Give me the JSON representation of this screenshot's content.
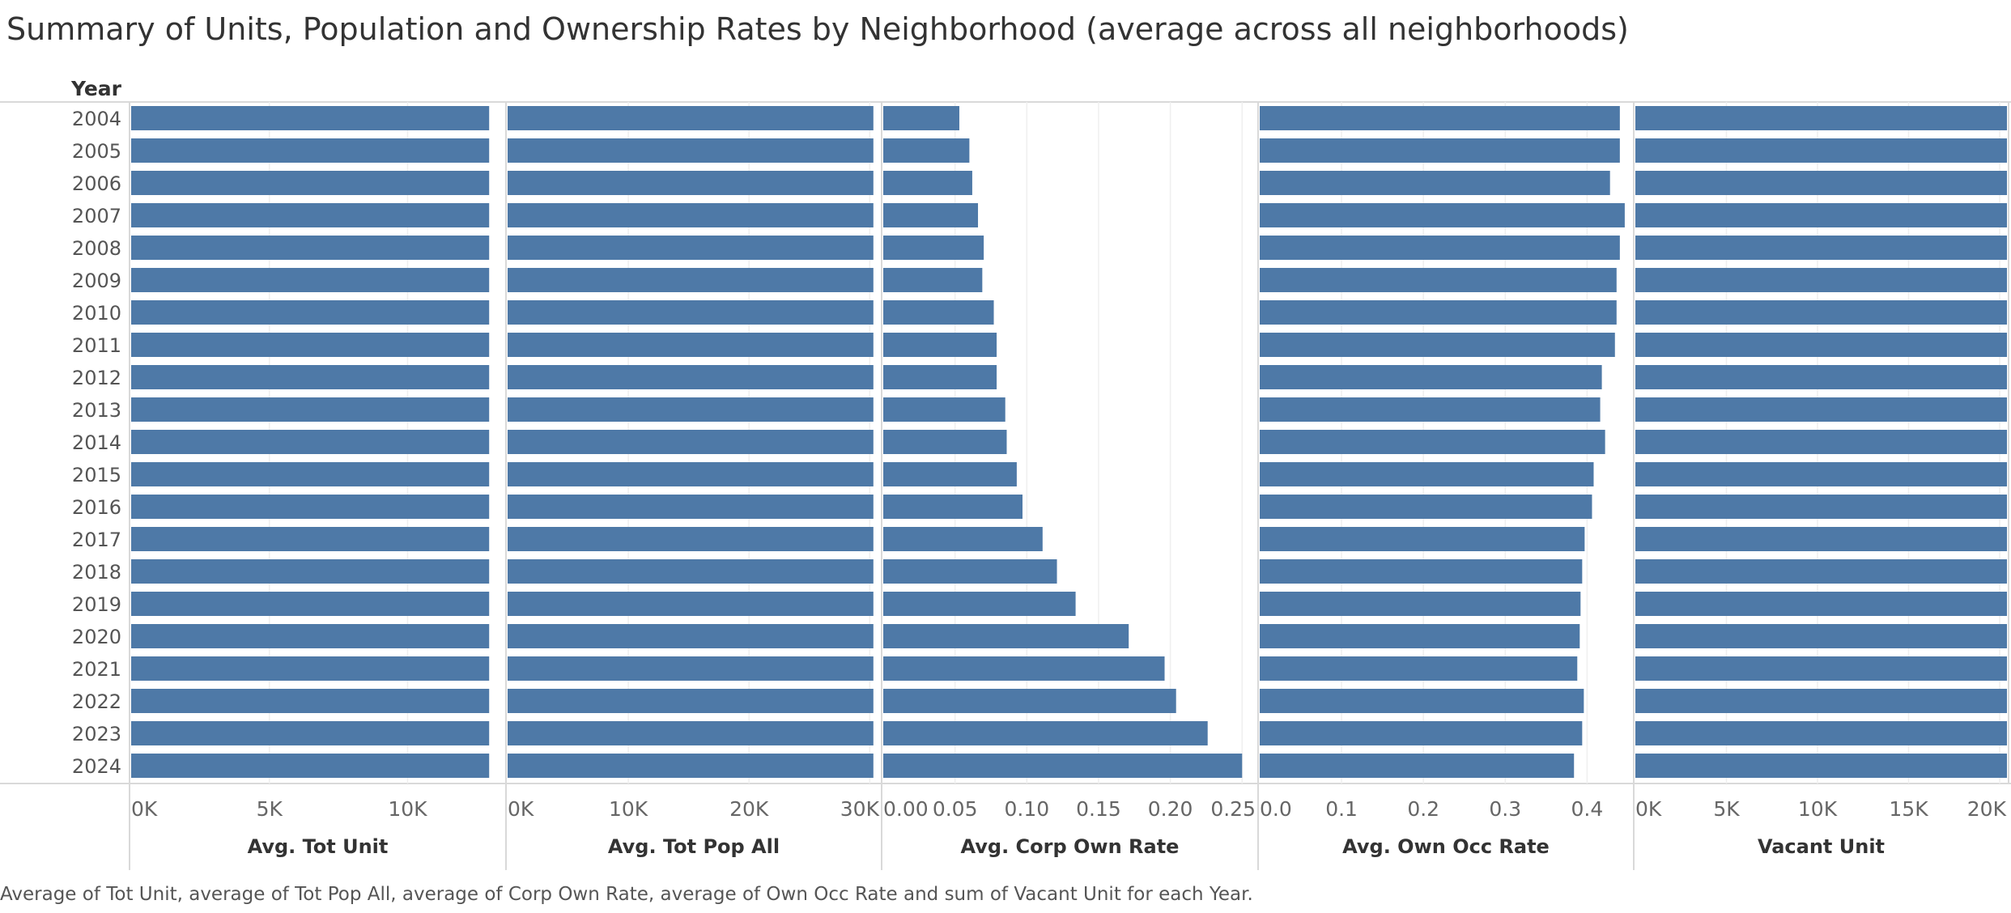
{
  "title": "Summary of Units, Population and Ownership Rates by Neighborhood (average across all neighborhoods)",
  "caption": "Average of Tot Unit, average of Tot Pop All, average of Corp Own Rate, average of Own Occ Rate and sum of Vacant Unit for each Year.",
  "bar_color": "#4e79a7",
  "chart_data": {
    "type": "bar",
    "orientation": "horizontal",
    "row_header": "Year",
    "categories": [
      "2004",
      "2005",
      "2006",
      "2007",
      "2008",
      "2009",
      "2010",
      "2011",
      "2012",
      "2013",
      "2014",
      "2015",
      "2016",
      "2017",
      "2018",
      "2019",
      "2020",
      "2021",
      "2022",
      "2023",
      "2024"
    ],
    "panels": [
      {
        "name": "Avg. Tot Unit",
        "xlim": [
          0,
          13500
        ],
        "ticks": [
          {
            "value": 0,
            "label": "0K"
          },
          {
            "value": 5000,
            "label": "5K"
          },
          {
            "value": 10000,
            "label": "10K"
          }
        ],
        "values": [
          12950,
          12950,
          12950,
          12950,
          12950,
          12950,
          12950,
          12950,
          12950,
          12950,
          12950,
          12950,
          12950,
          12950,
          12950,
          12950,
          12950,
          12950,
          12950,
          12950,
          12950
        ]
      },
      {
        "name": "Avg. Tot Pop All",
        "xlim": [
          0,
          30850
        ],
        "ticks": [
          {
            "value": 0,
            "label": "0K"
          },
          {
            "value": 10000,
            "label": "10K"
          },
          {
            "value": 20000,
            "label": "20K"
          },
          {
            "value": 30000,
            "label": "30K"
          }
        ],
        "values": [
          30300,
          30300,
          30300,
          30300,
          30300,
          30300,
          30300,
          30300,
          30300,
          30300,
          30300,
          30300,
          30300,
          30300,
          30300,
          30300,
          30300,
          30300,
          30300,
          30300,
          30300
        ]
      },
      {
        "name": "Avg. Corp Own Rate",
        "xlim": [
          0,
          0.26
        ],
        "ticks": [
          {
            "value": 0,
            "label": "0.00"
          },
          {
            "value": 0.05,
            "label": "0.05"
          },
          {
            "value": 0.1,
            "label": "0.10"
          },
          {
            "value": 0.15,
            "label": "0.15"
          },
          {
            "value": 0.2,
            "label": "0.20"
          },
          {
            "value": 0.25,
            "label": "0.25"
          }
        ],
        "values": [
          0.053,
          0.06,
          0.062,
          0.066,
          0.07,
          0.069,
          0.077,
          0.079,
          0.079,
          0.085,
          0.086,
          0.093,
          0.097,
          0.111,
          0.121,
          0.134,
          0.171,
          0.196,
          0.204,
          0.226,
          0.25
        ]
      },
      {
        "name": "Avg. Own Occ Rate",
        "xlim": [
          0,
          0.455
        ],
        "ticks": [
          {
            "value": 0,
            "label": "0.0"
          },
          {
            "value": 0.1,
            "label": "0.1"
          },
          {
            "value": 0.2,
            "label": "0.2"
          },
          {
            "value": 0.3,
            "label": "0.3"
          },
          {
            "value": 0.4,
            "label": "0.4"
          }
        ],
        "values": [
          0.44,
          0.44,
          0.428,
          0.446,
          0.44,
          0.436,
          0.436,
          0.434,
          0.418,
          0.416,
          0.422,
          0.408,
          0.406,
          0.397,
          0.394,
          0.392,
          0.391,
          0.388,
          0.396,
          0.394,
          0.384
        ]
      },
      {
        "name": "Vacant Unit",
        "xlim": [
          0,
          20400
        ],
        "ticks": [
          {
            "value": 0,
            "label": "0K"
          },
          {
            "value": 5000,
            "label": "5K"
          },
          {
            "value": 10000,
            "label": "10K"
          },
          {
            "value": 15000,
            "label": "15K"
          },
          {
            "value": 20000,
            "label": "20K"
          }
        ],
        "values": [
          21900,
          21900,
          21900,
          21900,
          21900,
          21900,
          21900,
          21900,
          21900,
          21900,
          21900,
          21900,
          21900,
          21900,
          21900,
          21900,
          21900,
          21900,
          21900,
          21900,
          21900
        ]
      }
    ]
  }
}
